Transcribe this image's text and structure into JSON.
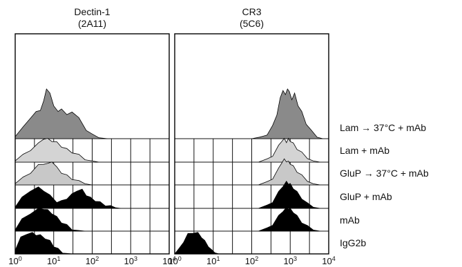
{
  "chart_data": [
    {
      "type": "area",
      "title": "Dectin-1",
      "subtitle": "(2A11)",
      "x_scale": "log",
      "xlim": [
        1,
        10000
      ],
      "x_ticks": [
        "10^0",
        "10^1",
        "10^2",
        "10^3",
        "10^4"
      ],
      "grid": true,
      "stacked_offset_histograms": true,
      "series": [
        {
          "name": "Lam → 37°C + mAb",
          "color": "#8a8a8a",
          "x": [
            1,
            1.6,
            2.5,
            3.5,
            4.5,
            5.5,
            6.5,
            8,
            10,
            13,
            16,
            22,
            30,
            45,
            70,
            100,
            150,
            250
          ],
          "y": [
            0.1,
            0.35,
            0.7,
            0.85,
            0.95,
            1.2,
            1.65,
            1.45,
            1.1,
            0.85,
            1.0,
            0.75,
            0.9,
            0.65,
            0.3,
            0.12,
            0.03,
            0
          ]
        },
        {
          "name": "Lam + mAb",
          "color": "#d4d4d4",
          "x": [
            1,
            1.6,
            2.5,
            4,
            5.5,
            7,
            9,
            12,
            16,
            22,
            30,
            45,
            65,
            100,
            150
          ],
          "y": [
            0.1,
            0.3,
            0.55,
            0.8,
            1.05,
            1.0,
            0.95,
            0.85,
            0.7,
            0.55,
            0.45,
            0.3,
            0.15,
            0.05,
            0
          ]
        },
        {
          "name": "GluP → 37°C + mAb",
          "color": "#c8c8c8",
          "x": [
            1,
            1.6,
            2.5,
            4,
            5.5,
            7,
            9,
            12,
            16,
            22,
            30,
            45,
            65,
            100
          ],
          "y": [
            0.1,
            0.3,
            0.55,
            0.85,
            0.95,
            0.9,
            1.05,
            0.75,
            0.55,
            0.4,
            0.28,
            0.15,
            0.05,
            0
          ]
        },
        {
          "name": "GluP + mAb",
          "color": "#000000",
          "x": [
            1,
            1.5,
            2.5,
            4,
            5.5,
            8,
            12,
            16,
            22,
            30,
            40,
            55,
            70,
            90,
            120,
            160,
            220,
            300,
            400,
            550
          ],
          "y": [
            0.1,
            0.45,
            0.8,
            0.9,
            0.8,
            0.55,
            0.3,
            0.3,
            0.45,
            0.6,
            0.8,
            0.8,
            0.6,
            0.45,
            0.35,
            0.25,
            0.15,
            0.08,
            0.03,
            0
          ]
        },
        {
          "name": "mAb",
          "color": "#000000",
          "x": [
            1,
            1.5,
            2.5,
            4,
            5.5,
            7,
            9,
            12,
            16,
            22,
            30,
            45,
            65
          ],
          "y": [
            0.1,
            0.5,
            0.8,
            0.95,
            1.0,
            0.9,
            0.8,
            0.6,
            0.4,
            0.25,
            0.1,
            0.03,
            0
          ]
        },
        {
          "name": "IgG2b",
          "color": "#000000",
          "x": [
            1,
            1.4,
            2,
            2.8,
            3.5,
            4.5,
            6,
            8,
            10,
            13,
            17,
            22,
            30
          ],
          "y": [
            0.2,
            0.7,
            0.9,
            0.9,
            0.85,
            0.8,
            0.7,
            0.55,
            0.35,
            0.2,
            0.08,
            0.02,
            0
          ]
        }
      ]
    },
    {
      "type": "area",
      "title": "CR3",
      "subtitle": "(5C6)",
      "x_scale": "log",
      "xlim": [
        1,
        10000
      ],
      "x_ticks": [
        "10^0",
        "10^1",
        "10^2",
        "10^3",
        "10^4"
      ],
      "grid": true,
      "stacked_offset_histograms": true,
      "series": [
        {
          "name": "Lam → 37°C + mAb",
          "color": "#8a8a8a",
          "x": [
            100,
            160,
            250,
            350,
            450,
            550,
            650,
            750,
            850,
            950,
            1100,
            1300,
            1600,
            2000,
            2600,
            3500,
            5000,
            7000
          ],
          "y": [
            0,
            0.05,
            0.15,
            0.4,
            0.8,
            1.3,
            1.6,
            1.4,
            1.65,
            1.5,
            1.3,
            1.45,
            1.1,
            0.85,
            0.5,
            0.25,
            0.08,
            0
          ]
        },
        {
          "name": "Lam + mAb",
          "color": "#d4d4d4",
          "x": [
            150,
            250,
            350,
            500,
            600,
            700,
            800,
            900,
            1000,
            1200,
            1500,
            2000,
            2800,
            4000,
            6000
          ],
          "y": [
            0,
            0.1,
            0.3,
            0.7,
            0.95,
            1.0,
            0.9,
            1.0,
            0.95,
            0.8,
            0.6,
            0.4,
            0.2,
            0.05,
            0
          ]
        },
        {
          "name": "GluP → 37°C + mAb",
          "color": "#c8c8c8",
          "x": [
            150,
            250,
            350,
            500,
            600,
            700,
            800,
            900,
            1000,
            1200,
            1500,
            2000,
            2800,
            4000,
            6000
          ],
          "y": [
            0,
            0.1,
            0.3,
            0.7,
            1.0,
            1.1,
            1.05,
            1.0,
            0.95,
            0.8,
            0.6,
            0.4,
            0.2,
            0.05,
            0
          ]
        },
        {
          "name": "GluP + mAb",
          "color": "#000000",
          "x": [
            150,
            250,
            350,
            500,
            650,
            800,
            900,
            1000,
            1200,
            1500,
            2000,
            2800,
            4000,
            6000
          ],
          "y": [
            0,
            0.1,
            0.3,
            0.7,
            1.0,
            1.15,
            1.1,
            1.05,
            0.9,
            0.7,
            0.45,
            0.2,
            0.05,
            0
          ]
        },
        {
          "name": "mAb",
          "color": "#000000",
          "x": [
            150,
            250,
            350,
            500,
            650,
            800,
            900,
            1000,
            1200,
            1500,
            2000,
            2800,
            4000,
            6000
          ],
          "y": [
            0,
            0.1,
            0.3,
            0.65,
            0.9,
            1.0,
            1.0,
            0.95,
            0.85,
            0.65,
            0.4,
            0.2,
            0.05,
            0
          ]
        },
        {
          "name": "IgG2b",
          "color": "#000000",
          "x": [
            1,
            1.3,
            1.7,
            2.2,
            3,
            4,
            5,
            6,
            7.5,
            9,
            11,
            14
          ],
          "y": [
            0,
            0.2,
            0.55,
            0.85,
            0.95,
            0.9,
            0.75,
            0.55,
            0.35,
            0.15,
            0.05,
            0
          ]
        }
      ]
    }
  ],
  "row_labels": [
    "Lam → 37°C + mAb",
    "Lam + mAb",
    "GluP → 37°C + mAb",
    "GluP + mAb",
    "mAb",
    "IgG2b"
  ]
}
